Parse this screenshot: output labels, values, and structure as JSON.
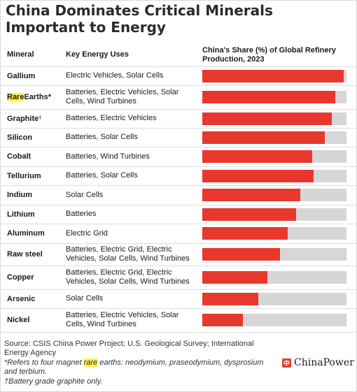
{
  "title": "China Dominates Critical Minerals Important to Energy",
  "headers": {
    "mineral": "Mineral",
    "uses": "Key Energy Uses",
    "share": "China's Share (%) of Global Refinery Production, 2023"
  },
  "colors": {
    "bar": "#e8382d",
    "track": "#d6d6d6",
    "highlight": "#fbf04b"
  },
  "chart_data": {
    "type": "bar",
    "orientation": "horizontal",
    "title": "China Dominates Critical Minerals Important to Energy",
    "value_label": "China's Share (%) of Global Refinery Production, 2023",
    "xlim": [
      0,
      100
    ],
    "grid": false,
    "categories": [
      "Gallium",
      "Rare Earths*",
      "Graphite†",
      "Silicon",
      "Cobalt",
      "Tellurium",
      "Indium",
      "Lithium",
      "Aluminum",
      "Raw steel",
      "Copper",
      "Arsenic",
      "Nickel"
    ],
    "values": [
      98,
      92,
      90,
      85,
      76,
      77,
      68,
      65,
      59,
      54,
      45,
      39,
      28
    ],
    "uses": [
      "Electric Vehicles, Solar Cells",
      "Batteries, Electric Vehicles, Solar Cells, Wind Turbines",
      "Batteries, Electric Vehicles",
      "Batteries, Solar Cells",
      "Batteries, Wind Turbines",
      "Batteries, Solar Cells",
      "Solar Cells",
      "Batteries",
      "Electric Grid",
      "Batteries, Electric Grid, Electric Vehicles, Solar Cells, Wind Turbines",
      "Batteries, Electric Grid, Electric Vehicles, Solar Cells, Wind Turbines",
      "Solar Cells",
      "Batteries, Electric Vehicles, Solar Cells, Wind Turbines"
    ]
  },
  "footnotes": {
    "source": "Source: CSIS China Power Project; U.S. Geological Survey; International Energy Agency",
    "rare_earths_note": "*Refers to four magnet rare earths: neodymium, praseodymium, dysprosium and terbium.",
    "graphite_note": "†Battery grade graphite only."
  },
  "logo": {
    "text": "ChinaPower",
    "mark": "中"
  }
}
